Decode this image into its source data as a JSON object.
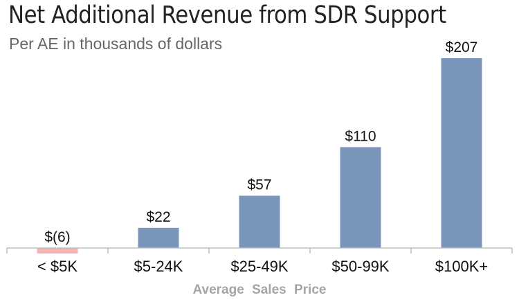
{
  "chart_data": {
    "type": "bar",
    "title": "Net Additional Revenue from SDR Support",
    "subtitle": "Per AE in thousands of dollars",
    "xlabel": "Average  Sales  Price",
    "ylabel": "",
    "categories": [
      "< $5K",
      "$5-24K",
      "$25-49K",
      "$50-99K",
      "$100K+"
    ],
    "values": [
      -6,
      22,
      57,
      110,
      207
    ],
    "data_labels": [
      "$(6)",
      "$22",
      "$57",
      "$110",
      "$207"
    ],
    "ylim": [
      -6,
      207
    ],
    "grid": false,
    "colors": {
      "positive": "#7b96bb",
      "negative": "#f7b2b0",
      "axis": "#bfbfbf"
    }
  }
}
